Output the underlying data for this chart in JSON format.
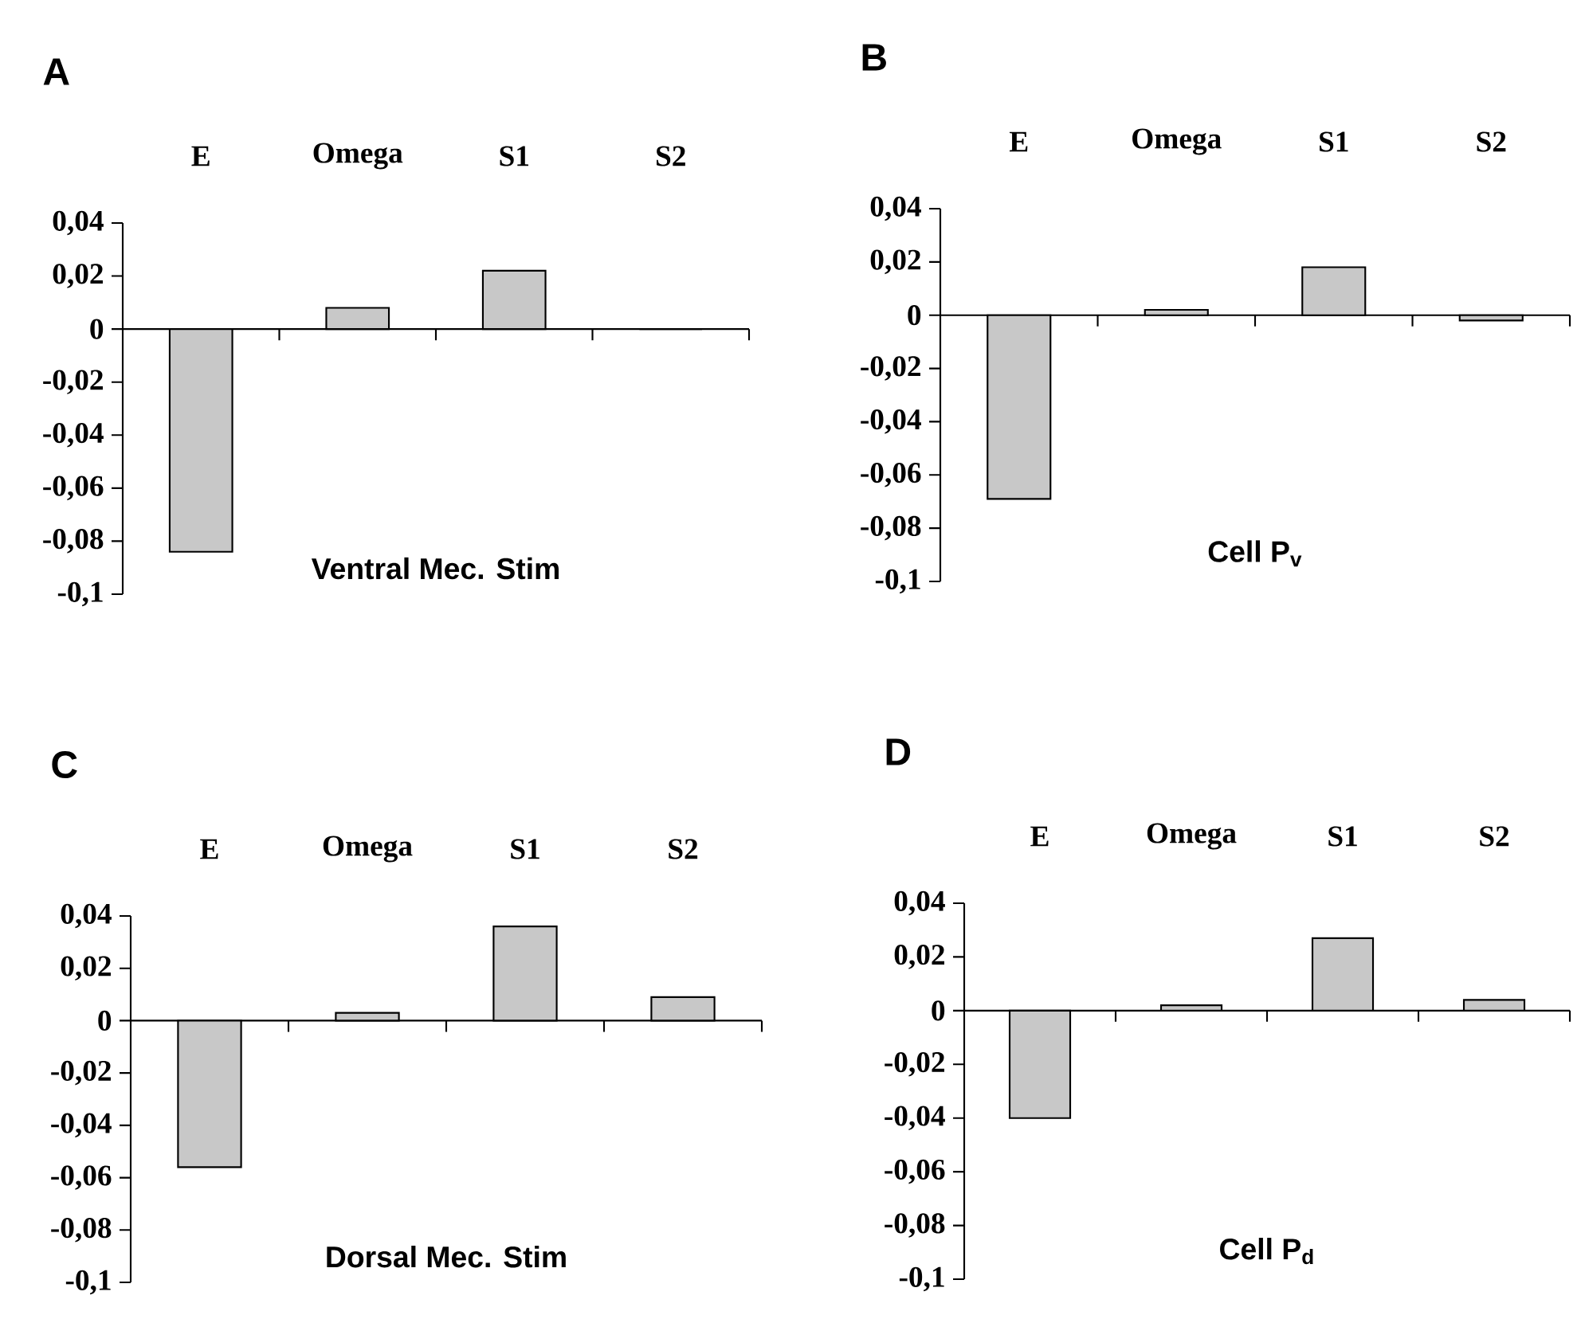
{
  "chart_data": [
    {
      "type": "bar",
      "title": "A",
      "categories": [
        "E",
        "Omega",
        "S1",
        "S2"
      ],
      "values": [
        -0.084,
        0.008,
        0.022,
        0.0
      ],
      "color": "#c8c8c8",
      "ylim": [
        -0.1,
        0.04
      ],
      "yticks": [
        {
          "value": -0.1,
          "label": "-0,1"
        },
        {
          "value": -0.08,
          "label": "-0,08"
        },
        {
          "value": -0.06,
          "label": "-0,06"
        },
        {
          "value": -0.04,
          "label": "-0,04"
        },
        {
          "value": -0.02,
          "label": "-0,02"
        },
        0,
        {
          "value": 0.02,
          "label": "0,02"
        },
        {
          "value": 0.04,
          "label": "0,04"
        }
      ],
      "annotations": [
        "Ventral Mec. Stim"
      ]
    },
    {
      "type": "bar",
      "title": "B",
      "categories": [
        "E",
        "Omega",
        "S1",
        "S2"
      ],
      "values": [
        -0.069,
        0.002,
        0.018,
        -0.002
      ],
      "color": "#c8c8c8",
      "ylim": [
        -0.1,
        0.04
      ],
      "yticks": [
        {
          "value": -0.1,
          "label": "-0,1"
        },
        {
          "value": -0.08,
          "label": "-0,08"
        },
        {
          "value": -0.06,
          "label": "-0,06"
        },
        {
          "value": -0.04,
          "label": "-0,04"
        },
        {
          "value": -0.02,
          "label": "-0,02"
        },
        0,
        {
          "value": 0.02,
          "label": "0,02"
        },
        {
          "value": 0.04,
          "label": "0,04"
        }
      ],
      "annotations": [
        "Cell P$_{v}$"
      ]
    },
    {
      "type": "bar",
      "title": "C",
      "categories": [
        "E",
        "Omega",
        "S1",
        "S2"
      ],
      "values": [
        -0.056,
        0.003,
        0.036,
        0.009
      ],
      "color": "#c8c8c8",
      "ylim": [
        -0.1,
        0.04
      ],
      "yticks": [
        {
          "value": -0.1,
          "label": "-0,1"
        },
        {
          "value": -0.08,
          "label": "-0,08"
        },
        {
          "value": -0.06,
          "label": "-0,06"
        },
        {
          "value": -0.04,
          "label": "-0,04"
        },
        {
          "value": -0.02,
          "label": "-0,02"
        },
        0,
        {
          "value": 0.02,
          "label": "0,02"
        },
        {
          "value": 0.04,
          "label": "0,04"
        }
      ],
      "annotations": [
        "Dorsal Mec. Stim"
      ]
    },
    {
      "type": "bar",
      "title": "D",
      "categories": [
        "E",
        "Omega",
        "S1",
        "S2"
      ],
      "values": [
        -0.04,
        0.002,
        0.027,
        0.004
      ],
      "color": "#c8c8c8",
      "ylim": [
        -0.1,
        0.04
      ],
      "yticks": [
        {
          "value": -0.1,
          "label": "-0,1"
        },
        {
          "value": -0.08,
          "label": "-0,08"
        },
        {
          "value": -0.06,
          "label": "-0,06"
        },
        {
          "value": -0.04,
          "label": "-0,04"
        },
        {
          "value": -0.02,
          "label": "-0,02"
        },
        0,
        {
          "value": 0.02,
          "label": "0,02"
        },
        {
          "value": 0.04,
          "label": "0,04"
        }
      ],
      "annotations": [
        "Cell P$_{d}$"
      ]
    }
  ]
}
